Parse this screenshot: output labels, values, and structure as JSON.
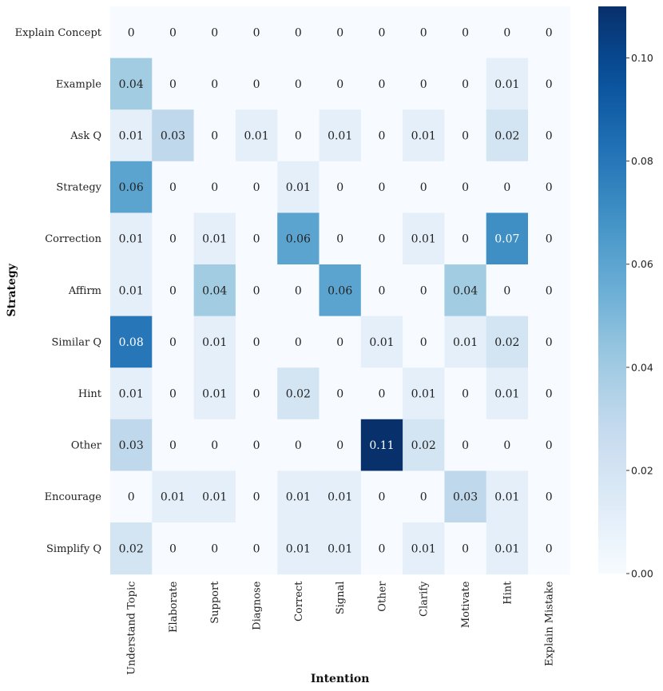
{
  "chart_data": {
    "type": "heatmap",
    "title": "",
    "xlabel": "Intention",
    "ylabel": "Strategy",
    "rows": [
      "Explain Concept",
      "Example",
      "Ask Q",
      "Strategy",
      "Correction",
      "Affirm",
      "Similar Q",
      "Hint",
      "Other",
      "Encourage",
      "Simplify Q"
    ],
    "columns": [
      "Understand Topic",
      "Elaborate",
      "Support",
      "Diagnose",
      "Correct",
      "Signal",
      "Other",
      "Clarify",
      "Motivate",
      "Hint",
      "Explain Mistake"
    ],
    "values": [
      [
        0,
        0,
        0,
        0,
        0,
        0,
        0,
        0,
        0,
        0,
        0
      ],
      [
        0.04,
        0,
        0,
        0,
        0,
        0,
        0,
        0,
        0,
        0.01,
        0
      ],
      [
        0.01,
        0.03,
        0,
        0.01,
        0,
        0.01,
        0,
        0.01,
        0,
        0.02,
        0
      ],
      [
        0.06,
        0,
        0,
        0,
        0.01,
        0,
        0,
        0,
        0,
        0,
        0
      ],
      [
        0.01,
        0,
        0.01,
        0,
        0.06,
        0,
        0,
        0.01,
        0,
        0.07,
        0
      ],
      [
        0.01,
        0,
        0.04,
        0,
        0,
        0.06,
        0,
        0,
        0.04,
        0,
        0
      ],
      [
        0.08,
        0,
        0.01,
        0,
        0,
        0,
        0.01,
        0,
        0.01,
        0.02,
        0
      ],
      [
        0.01,
        0,
        0.01,
        0,
        0.02,
        0,
        0,
        0.01,
        0,
        0.01,
        0
      ],
      [
        0.03,
        0,
        0,
        0,
        0,
        0,
        0.11,
        0.02,
        0,
        0,
        0
      ],
      [
        0,
        0.01,
        0.01,
        0,
        0.01,
        0.01,
        0,
        0,
        0.03,
        0.01,
        0
      ],
      [
        0.02,
        0,
        0,
        0,
        0.01,
        0.01,
        0,
        0.01,
        0,
        0.01,
        0
      ]
    ],
    "colorbar": {
      "min": 0,
      "max": 0.11,
      "ticks": [
        0,
        0.02,
        0.04,
        0.06,
        0.08,
        0.1
      ],
      "tick_labels": [
        "0.00",
        "0.02",
        "0.04",
        "0.06",
        "0.08",
        "0.10"
      ],
      "colormap": "Blues"
    }
  }
}
